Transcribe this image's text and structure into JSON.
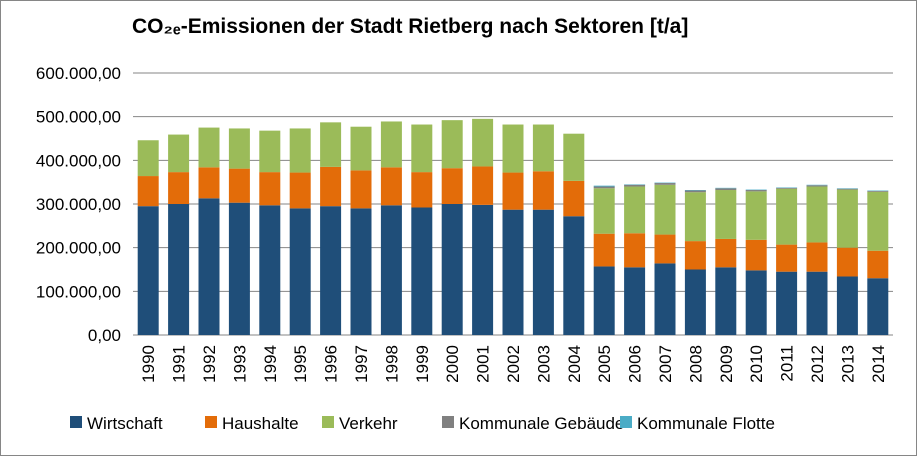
{
  "chart_data": {
    "type": "stacked_bar",
    "title": "CO₂ₑ-Emissionen der Stadt Rietberg nach Sektoren [t/a]",
    "categories": [
      "1990",
      "1991",
      "1992",
      "1993",
      "1994",
      "1995",
      "1996",
      "1997",
      "1998",
      "1999",
      "2000",
      "2001",
      "2002",
      "2003",
      "2004",
      "2005",
      "2006",
      "2007",
      "2008",
      "2009",
      "2010",
      "2011",
      "2012",
      "2013",
      "2014"
    ],
    "series": [
      {
        "name": "Wirtschaft",
        "color": "#1F4E79",
        "values": [
          295000,
          300000,
          313000,
          303000,
          297000,
          290000,
          295000,
          290000,
          297000,
          292000,
          300000,
          298000,
          287000,
          287000,
          272000,
          157000,
          155000,
          164000,
          150000,
          155000,
          148000,
          145000,
          145000,
          134000,
          130000
        ]
      },
      {
        "name": "Haushalte",
        "color": "#E36C09",
        "values": [
          69000,
          73000,
          71000,
          78000,
          76000,
          82000,
          90000,
          87000,
          87000,
          81000,
          82000,
          88000,
          85000,
          88000,
          81000,
          75000,
          78000,
          66000,
          65000,
          65000,
          70000,
          62000,
          67000,
          66000,
          63000
        ]
      },
      {
        "name": "Verkehr",
        "color": "#9BBB59",
        "values": [
          82000,
          86000,
          91000,
          92000,
          95000,
          101000,
          102000,
          100000,
          105000,
          109000,
          110000,
          109000,
          110000,
          107000,
          108000,
          104000,
          107000,
          114000,
          112000,
          112000,
          111000,
          128000,
          128000,
          133000,
          135000
        ]
      },
      {
        "name": "Kommunale Gebäude",
        "color": "#808080",
        "values": [
          null,
          null,
          null,
          null,
          null,
          null,
          null,
          null,
          null,
          null,
          null,
          null,
          null,
          null,
          null,
          4000,
          4000,
          4000,
          4000,
          4000,
          3000,
          2000,
          3000,
          2000,
          2000
        ]
      },
      {
        "name": "Kommunale Flotte",
        "color": "#4BACC6",
        "values": [
          null,
          null,
          null,
          null,
          null,
          null,
          null,
          null,
          null,
          null,
          null,
          null,
          null,
          null,
          null,
          2000,
          1000,
          1000,
          1000,
          1000,
          1000,
          1000,
          1000,
          1000,
          1000
        ]
      }
    ],
    "ylim": [
      0,
      600000
    ],
    "yticks": [
      {
        "value": 0,
        "label": "0,00"
      },
      {
        "value": 100000,
        "label": "100.000,00"
      },
      {
        "value": 200000,
        "label": "200.000,00"
      },
      {
        "value": 300000,
        "label": "300.000,00"
      },
      {
        "value": 400000,
        "label": "400.000,00"
      },
      {
        "value": 500000,
        "label": "500.000,00"
      },
      {
        "value": 600000,
        "label": "600.000,00"
      }
    ],
    "grid": true,
    "legend": "bottom"
  }
}
